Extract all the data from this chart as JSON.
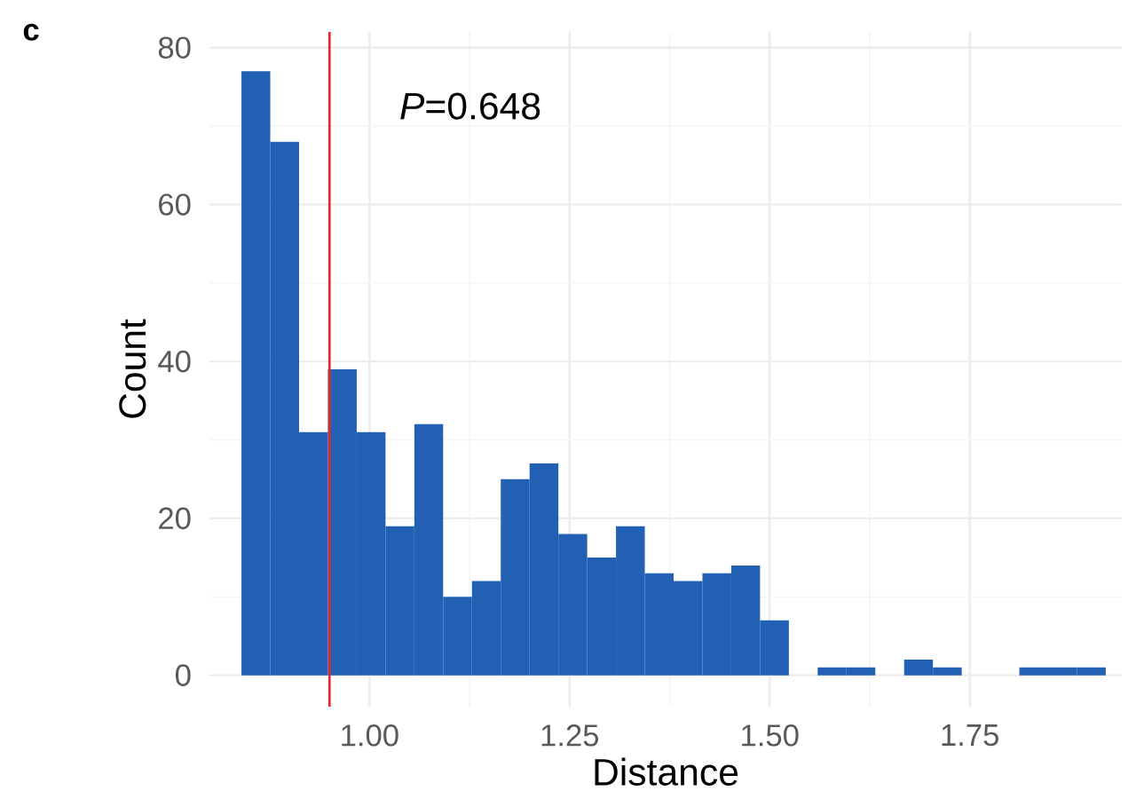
{
  "chart_data": {
    "type": "histogram",
    "xlabel": "Distance",
    "ylabel": "Count",
    "color": "#2160b3",
    "bins": [
      0.84,
      0.876,
      0.912,
      0.948,
      0.984,
      1.02,
      1.056,
      1.092,
      1.128,
      1.164,
      1.2,
      1.236,
      1.272,
      1.308,
      1.344,
      1.38,
      1.416,
      1.452,
      1.488,
      1.524,
      1.56,
      1.596,
      1.632,
      1.668,
      1.704,
      1.74,
      1.776,
      1.812,
      1.848,
      1.884,
      1.92
    ],
    "values": [
      77,
      68,
      31,
      39,
      31,
      19,
      32,
      10,
      12,
      25,
      27,
      18,
      15,
      19,
      13,
      12,
      13,
      14,
      7,
      0,
      1,
      1,
      0,
      2,
      1,
      0,
      0,
      1,
      1,
      1
    ],
    "xlim": [
      0.8,
      1.94
    ],
    "ylim": [
      -4,
      82
    ],
    "xticks": [
      {
        "value": 1.0,
        "label": "1.00"
      },
      {
        "value": 1.25,
        "label": "1.25"
      },
      {
        "value": 1.5,
        "label": "1.50"
      },
      {
        "value": 1.75,
        "label": "1.75"
      }
    ],
    "yticks": [
      0,
      20,
      40,
      60,
      80
    ],
    "grid": true,
    "ref_lines": [
      {
        "axis": "x",
        "value": 0.95,
        "color": "#e8252a"
      }
    ],
    "annotations": [
      "c",
      "*P*=0.648"
    ]
  }
}
